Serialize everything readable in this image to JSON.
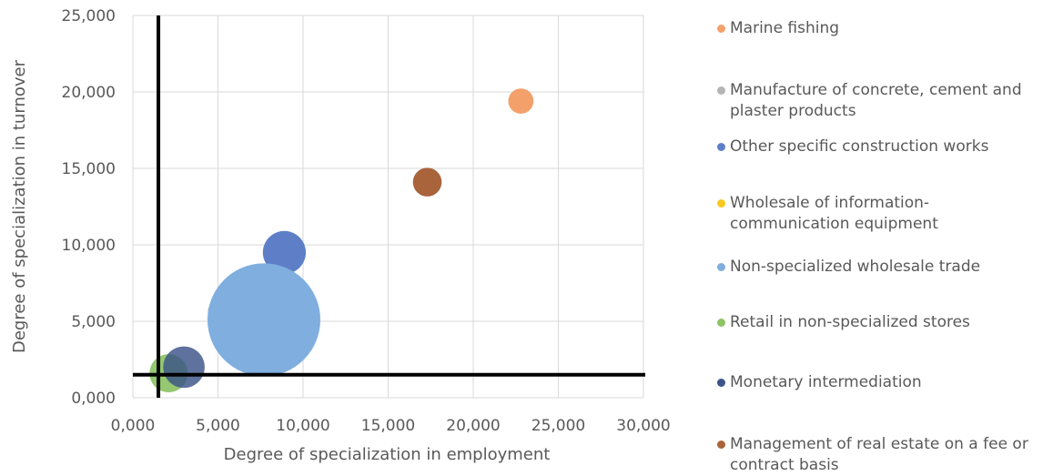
{
  "chart_data": {
    "type": "bubble",
    "xlabel": "Degree of specialization in employment",
    "ylabel": "Degree of specialization in turnover",
    "xlim": [
      0,
      30000
    ],
    "ylim": [
      0,
      25000
    ],
    "x_ticks": [
      "0,000",
      "5,000",
      "10,000",
      "15,000",
      "20,000",
      "25,000",
      "30,000"
    ],
    "y_ticks": [
      "0,000",
      "5,000",
      "10,000",
      "15,000",
      "20,000",
      "25,000"
    ],
    "grid": true,
    "legend_position": "right",
    "reference_lines": {
      "x": 1500,
      "y": 1500
    },
    "series": [
      {
        "name": "Marine fishing",
        "x": 22800,
        "y": 19400,
        "size": 5,
        "color": "#F4A06B",
        "opacity": 1.0
      },
      {
        "name": "Manufacture of concrete, cement and\nplaster products",
        "x": 4800,
        "y": 5700,
        "size": 1.4,
        "color": "#B5B5B5",
        "opacity": 1.0
      },
      {
        "name": "Other specific construction works",
        "x": 8900,
        "y": 9500,
        "size": 14.5,
        "color": "#5E7FC8",
        "opacity": 1.0
      },
      {
        "name": "Wholesale of information-\ncommunication equipment",
        "x": 2500,
        "y": 2000,
        "size": 0.3,
        "color": "#F9C81F",
        "opacity": 1.0
      },
      {
        "name": "Non-specialized wholesale trade",
        "x": 7700,
        "y": 5100,
        "size": 100,
        "color": "#7FAEDF",
        "opacity": 1.0
      },
      {
        "name": "Retail in non-specialized stores",
        "x": 2100,
        "y": 1600,
        "size": 11.5,
        "color": "#8CC365",
        "opacity": 0.92
      },
      {
        "name": "Monetary intermediation",
        "x": 3000,
        "y": 2000,
        "size": 13.5,
        "color": "#3A5388",
        "opacity": 0.82
      },
      {
        "name": "Management of real estate on a fee or\ncontract basis",
        "x": 17300,
        "y": 14100,
        "size": 6.5,
        "color": "#A9643B",
        "opacity": 1.0
      }
    ]
  }
}
